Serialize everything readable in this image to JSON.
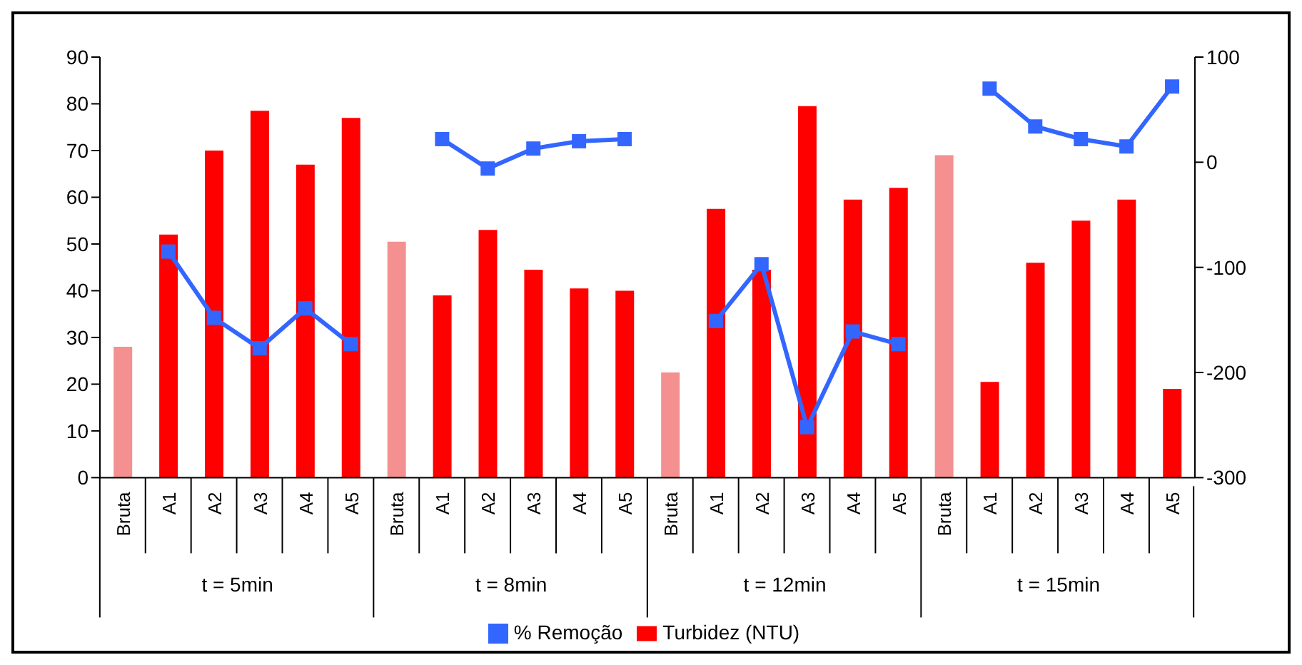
{
  "chart_data": {
    "type": "bar",
    "categories": [
      "Bruta",
      "A1",
      "A2",
      "A3",
      "A4",
      "A5",
      "Bruta",
      "A1",
      "A2",
      "A3",
      "A4",
      "A5",
      "Bruta",
      "A1",
      "A2",
      "A3",
      "A4",
      "A5",
      "Bruta",
      "A1",
      "A2",
      "A3",
      "A4",
      "A5"
    ],
    "annotations": [
      "t = 5min",
      "t = 8min",
      "t = 12min",
      "t = 15min"
    ],
    "series": [
      {
        "name": "Turbidez (NTU)",
        "color": "#ff0000",
        "colors": [
          "#f59090",
          "#ff0000",
          "#ff0000",
          "#ff0000",
          "#ff0000",
          "#ff0000",
          "#f59090",
          "#ff0000",
          "#ff0000",
          "#ff0000",
          "#ff0000",
          "#ff0000",
          "#f59090",
          "#ff0000",
          "#ff0000",
          "#ff0000",
          "#ff0000",
          "#ff0000",
          "#f59090",
          "#ff0000",
          "#ff0000",
          "#ff0000",
          "#ff0000",
          "#ff0000"
        ],
        "values": [
          28,
          52,
          70,
          78.5,
          67,
          77,
          50.5,
          39,
          53,
          44.5,
          40.5,
          40,
          22.5,
          57.5,
          44.5,
          79.5,
          59.5,
          62,
          69,
          20.5,
          46,
          55,
          59.5,
          19
        ]
      },
      {
        "name": "% Remoção",
        "type": "line",
        "axis": "y2",
        "color": "#3366ff",
        "values": [
          null,
          -85,
          -148,
          -177,
          -139,
          -173,
          null,
          22,
          -6,
          13,
          20,
          22,
          null,
          -151,
          -97,
          -252,
          -161,
          -173,
          null,
          70,
          34,
          22,
          15,
          72
        ]
      }
    ],
    "ylim": [
      0,
      90
    ],
    "yticks": [
      0,
      10,
      20,
      30,
      40,
      50,
      60,
      70,
      80,
      90
    ],
    "y2lim": [
      -300,
      100
    ],
    "y2ticks": [
      -300,
      -200,
      -100,
      0,
      100
    ],
    "legend": "bottom",
    "marker": "square"
  }
}
